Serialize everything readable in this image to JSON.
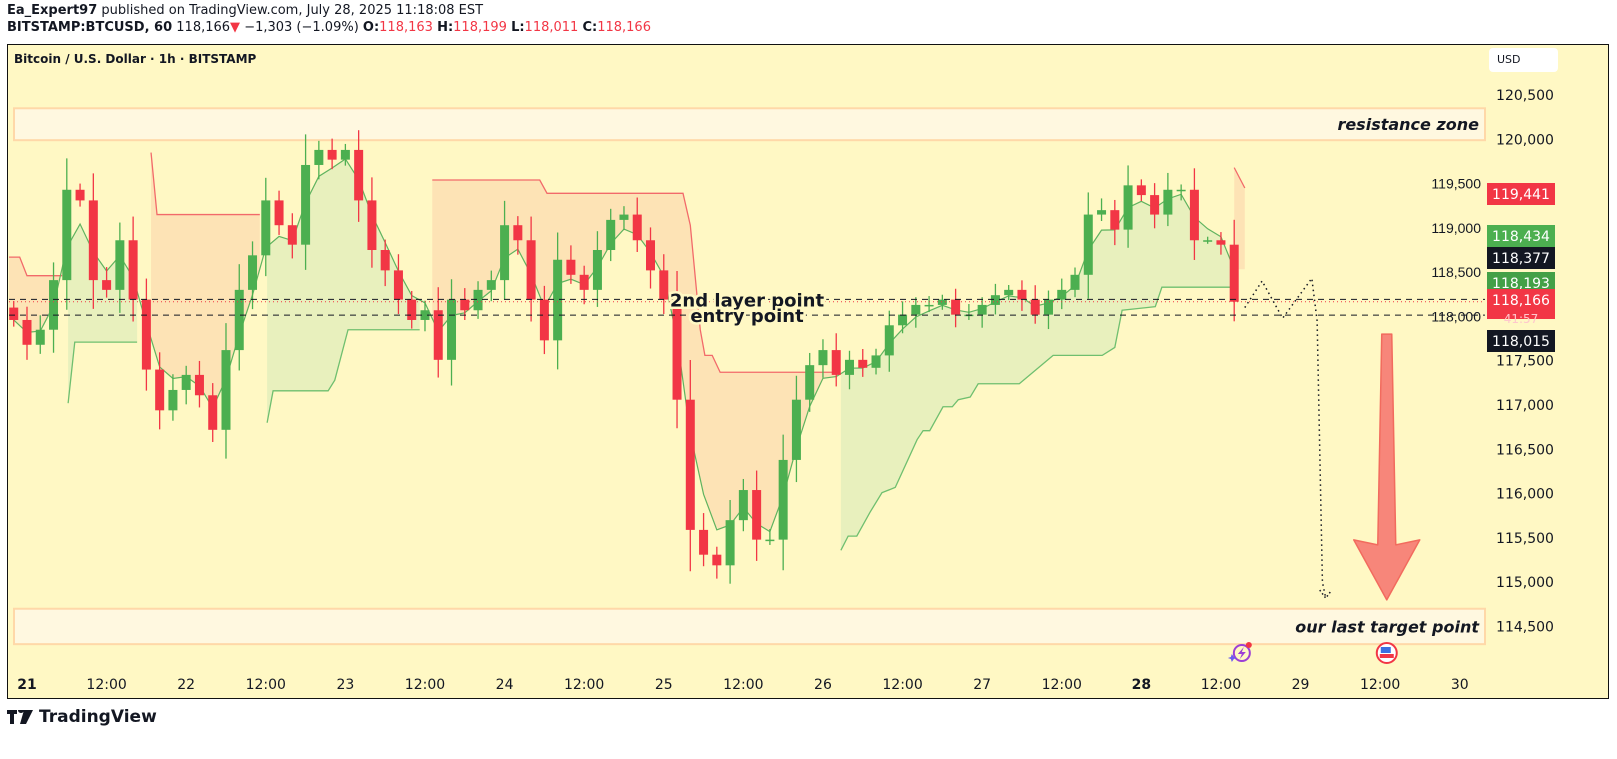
{
  "header": {
    "author": "Ea_Expert97",
    "published": "published on TradingView.com, July 28, 2025 11:18:08 EST",
    "symbol": "BITSTAMP:BTCUSD, 60",
    "last": "118,166",
    "change": "−1,303 (−1.09%)",
    "o_label": "O:",
    "o": "118,163",
    "h_label": "H:",
    "h": "118,199",
    "l_label": "L:",
    "l": "118,011",
    "c_label": "C:",
    "c": "118,166"
  },
  "chart_title": "Bitcoin / U.S. Dollar · 1h · BITSTAMP",
  "currency": "USD",
  "logo": "TradingView",
  "colors": {
    "up": "#4caf50",
    "down": "#f23645",
    "background": "#fff8c4",
    "band_up_fill": "#e8f0bd",
    "band_down_fill": "#fde3b5",
    "zone": "#fff8e0",
    "zone_border": "#ffd8a8",
    "arrow": "#f7867a"
  },
  "chart_data": {
    "type": "candlestick",
    "timeframe": "1h",
    "y_ticks": [
      "120,500",
      "120,000",
      "119,500",
      "119,000",
      "118,500",
      "118,000",
      "117,500",
      "117,000",
      "116,500",
      "116,000",
      "115,500",
      "115,000",
      "114,500"
    ],
    "y_tick_values": [
      120500,
      120000,
      119500,
      119000,
      118500,
      118000,
      117500,
      117000,
      116500,
      116000,
      115500,
      115000,
      114500
    ],
    "x_ticks": [
      {
        "label": "21",
        "hour": 0,
        "bold": true
      },
      {
        "label": "12:00",
        "hour": 12
      },
      {
        "label": "22",
        "hour": 24
      },
      {
        "label": "12:00",
        "hour": 36
      },
      {
        "label": "23",
        "hour": 48
      },
      {
        "label": "12:00",
        "hour": 60
      },
      {
        "label": "24",
        "hour": 72
      },
      {
        "label": "12:00",
        "hour": 84
      },
      {
        "label": "25",
        "hour": 96
      },
      {
        "label": "12:00",
        "hour": 108
      },
      {
        "label": "26",
        "hour": 120
      },
      {
        "label": "12:00",
        "hour": 132
      },
      {
        "label": "27",
        "hour": 144
      },
      {
        "label": "12:00",
        "hour": 156
      },
      {
        "label": "28",
        "hour": 168,
        "bold": true
      },
      {
        "label": "12:00",
        "hour": 180
      },
      {
        "label": "29",
        "hour": 192
      },
      {
        "label": "12:00",
        "hour": 204
      },
      {
        "label": "30",
        "hour": 216
      }
    ],
    "candle_start_hour": -2,
    "candle_step_hours": 2,
    "first_open": 118100,
    "closes": [
      117960,
      117680,
      117850,
      118410,
      119430,
      119310,
      118410,
      118300,
      118860,
      118190,
      117400,
      116940,
      117170,
      117340,
      117110,
      116720,
      117620,
      118300,
      118690,
      119310,
      119030,
      118810,
      119710,
      119880,
      119770,
      119880,
      119310,
      118750,
      118520,
      118190,
      117960,
      118070,
      117510,
      118190,
      118070,
      118300,
      118410,
      119030,
      118860,
      118190,
      117730,
      118640,
      118470,
      118300,
      118750,
      119090,
      119150,
      118860,
      118520,
      118190,
      117060,
      115590,
      115310,
      115190,
      115700,
      116040,
      115480,
      115480,
      116380,
      117060,
      117450,
      117620,
      117340,
      117510,
      117420,
      117560,
      117900,
      118020,
      118130,
      118130,
      118190,
      118020,
      118020,
      118130,
      118240,
      118300,
      118190,
      118020,
      118190,
      118300,
      118470,
      119150,
      119200,
      118980,
      119480,
      119370,
      119150,
      119430,
      119430,
      118860,
      118860,
      118810,
      118166
    ],
    "trailing_bands": [
      {
        "trend": "down",
        "points": [
          [
            -3.0,
            118670
          ],
          [
            -1.1,
            118670
          ],
          [
            0,
            118460
          ],
          [
            5.3,
            118460
          ]
        ]
      },
      {
        "trend": "up",
        "points": [
          [
            6.2,
            117020
          ],
          [
            7.2,
            117710
          ],
          [
            16.6,
            117710
          ]
        ]
      },
      {
        "trend": "down",
        "points": [
          [
            18.7,
            119850
          ],
          [
            19.6,
            119150
          ],
          [
            35.1,
            119150
          ]
        ]
      },
      {
        "trend": "up",
        "points": [
          [
            36.2,
            116800
          ],
          [
            37.1,
            117160
          ],
          [
            45.4,
            117160
          ],
          [
            46.4,
            117280
          ],
          [
            48.4,
            117850
          ],
          [
            59.2,
            117850
          ]
        ]
      },
      {
        "trend": "down",
        "points": [
          [
            61.1,
            119540
          ],
          [
            77.3,
            119540
          ],
          [
            78.4,
            119390
          ],
          [
            98.9,
            119390
          ],
          [
            100,
            119030
          ],
          [
            101.5,
            117850
          ],
          [
            102.2,
            117560
          ],
          [
            103.3,
            117560
          ],
          [
            104.5,
            117370
          ],
          [
            121.8,
            117370
          ]
        ]
      },
      {
        "trend": "up",
        "points": [
          [
            122.7,
            115360
          ],
          [
            123.8,
            115520
          ],
          [
            125.1,
            115520
          ],
          [
            127.1,
            115790
          ],
          [
            128.9,
            116010
          ],
          [
            130.9,
            116070
          ],
          [
            134.2,
            116610
          ],
          [
            135.1,
            116710
          ],
          [
            136.1,
            116710
          ],
          [
            138.1,
            116980
          ],
          [
            139.5,
            116980
          ],
          [
            140.4,
            117060
          ],
          [
            142.2,
            117090
          ],
          [
            143.4,
            117240
          ],
          [
            149.6,
            117240
          ],
          [
            154.7,
            117560
          ],
          [
            162.1,
            117560
          ],
          [
            164.0,
            117650
          ],
          [
            165.1,
            118070
          ],
          [
            170.1,
            118110
          ],
          [
            171.1,
            118330
          ],
          [
            181.7,
            118330
          ]
        ]
      },
      {
        "trend": "down",
        "points": [
          [
            182,
            119680
          ],
          [
            183.6,
            119450
          ]
        ]
      }
    ],
    "zones": [
      {
        "label": "resistance zone",
        "top": 120350,
        "bottom": 119990
      },
      {
        "label": "our last target point",
        "top": 114700,
        "bottom": 114300
      }
    ],
    "levels": [
      {
        "label": "2nd layer point",
        "price": 118193
      },
      {
        "label": "entry point",
        "price": 118015
      }
    ],
    "current_price": 118166,
    "projection": [
      [
        183.6,
        118100
      ],
      [
        186.2,
        118400
      ],
      [
        189.3,
        117980
      ],
      [
        193.7,
        118430
      ],
      [
        194.5,
        117950
      ],
      [
        195.3,
        115000
      ],
      [
        195.8,
        114820
      ]
    ],
    "arrow": {
      "from_price": 117800,
      "to_price": 114800,
      "hour": 205
    }
  },
  "price_badges": [
    {
      "value": "119,441",
      "price": 119441,
      "color": "#f23645"
    },
    {
      "value": "118,434",
      "price": 118434,
      "color": "#4caf50"
    },
    {
      "value": "118,377",
      "price": 118377,
      "color": "#131722"
    },
    {
      "value": "118,193",
      "price": 118193,
      "color": "#43a047"
    },
    {
      "value": "118,166",
      "price": 118166,
      "color": "#f23645",
      "countdown": "41:57"
    },
    {
      "value": "118,015",
      "price": 118015,
      "color": "#131722"
    }
  ],
  "events": [
    {
      "icon": "earnings-lightning-icon",
      "hour": 183
    },
    {
      "icon": "us-flag-icon",
      "hour": 205
    }
  ]
}
